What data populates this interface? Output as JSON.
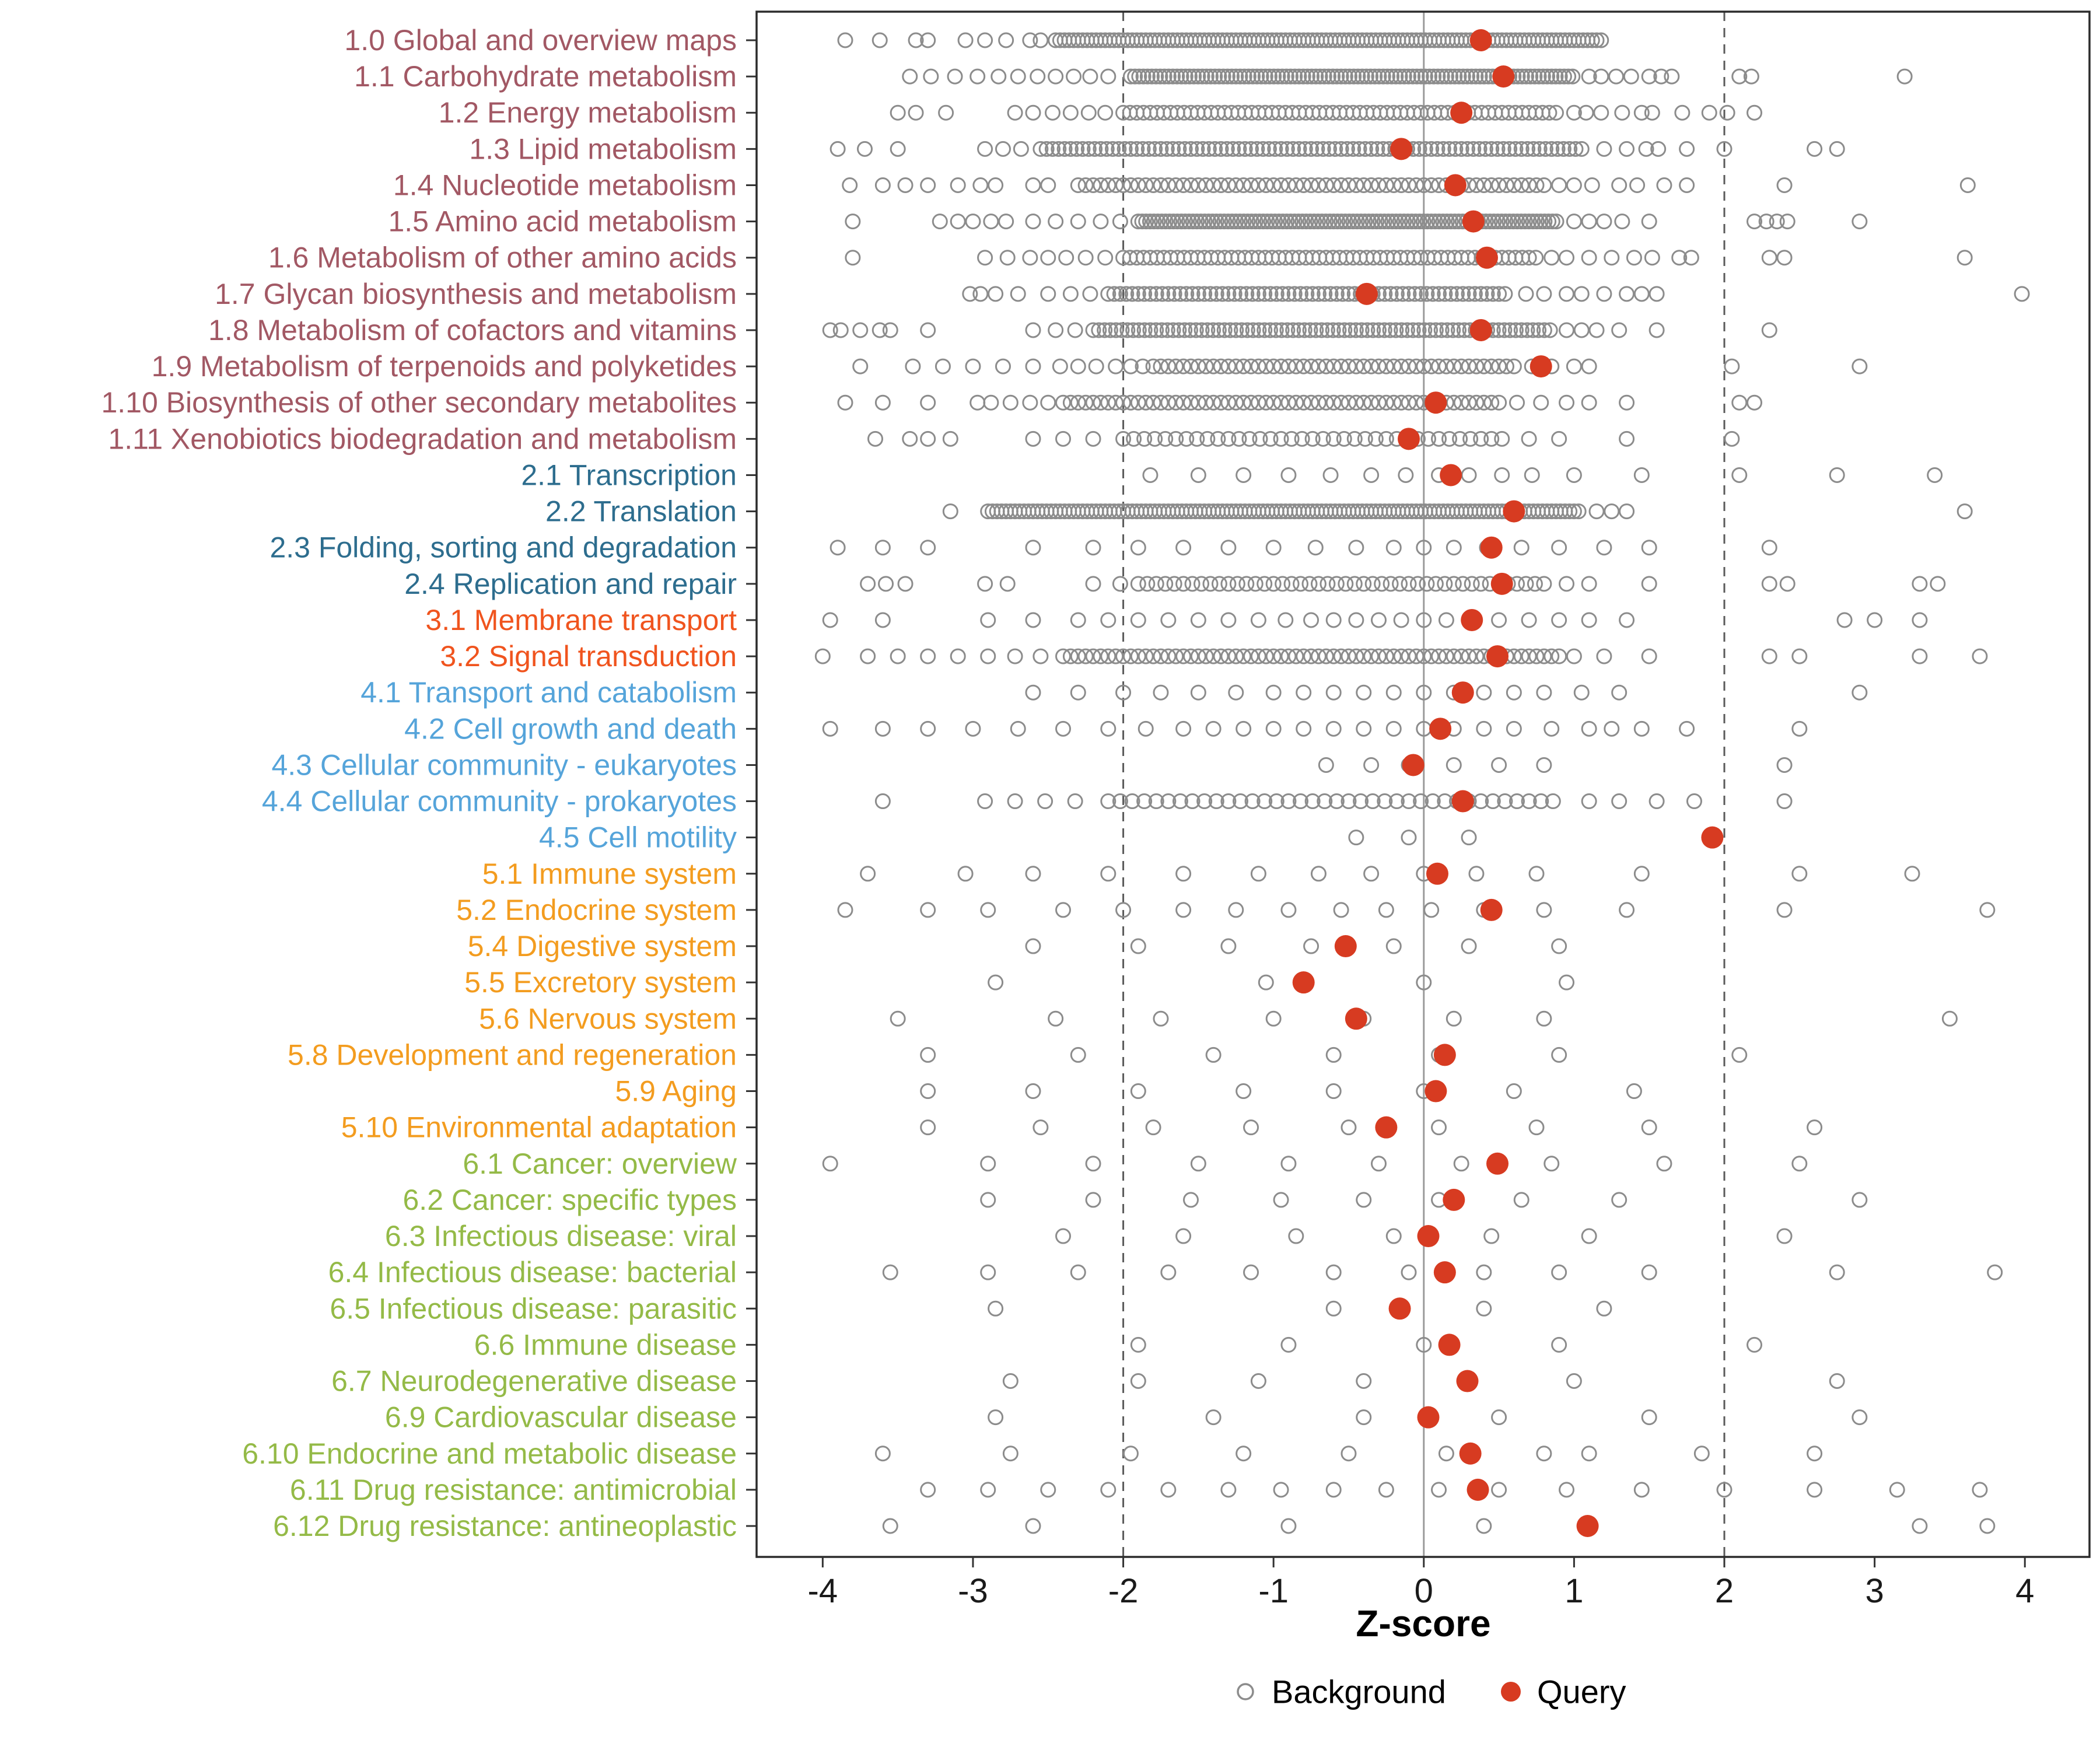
{
  "chart_data": {
    "type": "scatter",
    "title": "",
    "xlabel": "Z-score",
    "x_ticks": [
      -4,
      -3,
      -2,
      -1,
      0,
      1,
      2,
      3,
      4
    ],
    "xlim": [
      -4.44,
      4.43
    ],
    "reference_lines": {
      "solid": [
        0
      ],
      "dashed": [
        -2,
        2
      ]
    },
    "legend": {
      "background": "Background",
      "query": "Query"
    },
    "colors": {
      "g1": "#a25864",
      "g2": "#2d6d8e",
      "g3": "#f0541e",
      "g4": "#55a4da",
      "g5": "#f39c1f",
      "g6": "#94ba47",
      "query": "#d73b21",
      "background_stroke": "#8c8c8c",
      "axis_text": "#1a1a1a",
      "panel_border": "#2b2b2b",
      "zero_line": "#9b9b9b",
      "dashed_line": "#5a5a5a"
    },
    "rows": [
      {
        "label": "1.0 Global and overview maps",
        "group": "g1",
        "q": 0.38,
        "runs": [
          [
            -2.45,
            1.18,
            0.03
          ]
        ],
        "pts": [
          -3.85,
          -3.62,
          -3.38,
          -3.3,
          -3.05,
          -2.92,
          -2.78,
          -2.62,
          -2.55
        ]
      },
      {
        "label": "1.1 Carbohydrate metabolism",
        "group": "g1",
        "q": 0.53,
        "runs": [
          [
            -1.95,
            1.0,
            0.028
          ]
        ],
        "pts": [
          -3.42,
          -3.28,
          -3.12,
          -2.97,
          -2.83,
          -2.7,
          -2.57,
          -2.45,
          -2.33,
          -2.22,
          -2.1,
          1.1,
          1.18,
          1.28,
          1.38,
          1.5,
          1.58,
          1.65,
          2.1,
          2.18,
          3.2
        ]
      },
      {
        "label": "1.2 Energy metabolism",
        "group": "g1",
        "q": 0.25,
        "runs": [
          [
            -2.0,
            0.88,
            0.045
          ]
        ],
        "pts": [
          -3.5,
          -3.38,
          -3.18,
          -2.72,
          -2.6,
          -2.47,
          -2.35,
          -2.23,
          -2.12,
          1.0,
          1.08,
          1.18,
          1.32,
          1.45,
          1.52,
          1.72,
          1.9,
          2.02,
          2.2
        ]
      },
      {
        "label": "1.3 Lipid metabolism",
        "group": "g1",
        "q": -0.15,
        "runs": [
          [
            -2.55,
            1.08,
            0.04
          ]
        ],
        "pts": [
          -3.9,
          -3.72,
          -3.5,
          -2.92,
          -2.8,
          -2.68,
          1.2,
          1.35,
          1.48,
          1.56,
          1.75,
          2.0,
          2.6,
          2.75
        ]
      },
      {
        "label": "1.4 Nucleotide metabolism",
        "group": "g1",
        "q": 0.21,
        "runs": [
          [
            -2.3,
            0.8,
            0.05
          ]
        ],
        "pts": [
          -3.82,
          -3.6,
          -3.45,
          -3.3,
          -3.1,
          -2.95,
          -2.85,
          -2.6,
          -2.5,
          0.9,
          1.0,
          1.12,
          1.3,
          1.42,
          1.6,
          1.75,
          2.4,
          3.62
        ]
      },
      {
        "label": "1.5 Amino acid metabolism",
        "group": "g1",
        "q": 0.33,
        "runs": [
          [
            -1.9,
            0.9,
            0.026
          ]
        ],
        "pts": [
          -3.8,
          -3.22,
          -3.1,
          -3.0,
          -2.88,
          -2.78,
          -2.6,
          -2.45,
          -2.3,
          -2.15,
          -2.02,
          1.0,
          1.1,
          1.2,
          1.32,
          1.5,
          2.2,
          2.28,
          2.35,
          2.42,
          2.9
        ]
      },
      {
        "label": "1.6 Metabolism of other amino acids",
        "group": "g1",
        "q": 0.42,
        "runs": [
          [
            -2.0,
            0.75,
            0.045
          ]
        ],
        "pts": [
          -3.8,
          -2.92,
          -2.77,
          -2.62,
          -2.5,
          -2.38,
          -2.25,
          -2.12,
          0.85,
          0.95,
          1.1,
          1.25,
          1.4,
          1.52,
          1.7,
          1.78,
          2.3,
          2.4,
          3.6
        ]
      },
      {
        "label": "1.7 Glycan biosynthesis and metabolism",
        "group": "g1",
        "q": -0.38,
        "runs": [
          [
            -2.1,
            0.55,
            0.04
          ]
        ],
        "pts": [
          -3.02,
          -2.95,
          -2.85,
          -2.7,
          -2.5,
          -2.35,
          -2.22,
          0.68,
          0.8,
          0.95,
          1.05,
          1.2,
          1.35,
          1.45,
          1.55,
          3.98
        ]
      },
      {
        "label": "1.8 Metabolism of cofactors and vitamins",
        "group": "g1",
        "q": 0.38,
        "runs": [
          [
            -2.2,
            0.85,
            0.038
          ]
        ],
        "pts": [
          -3.95,
          -3.88,
          -3.75,
          -3.62,
          -3.55,
          -3.3,
          -2.6,
          -2.45,
          -2.32,
          0.95,
          1.05,
          1.15,
          1.3,
          1.55,
          2.3
        ]
      },
      {
        "label": "1.9 Metabolism of terpenoids and polyketides",
        "group": "g1",
        "q": 0.78,
        "runs": [
          [
            -1.8,
            0.62,
            0.05
          ]
        ],
        "pts": [
          -3.75,
          -3.4,
          -3.2,
          -3.0,
          -2.8,
          -2.6,
          -2.42,
          -2.3,
          -2.18,
          -2.05,
          -1.95,
          -1.87,
          0.72,
          0.85,
          1.0,
          1.1,
          2.05,
          2.9
        ]
      },
      {
        "label": "1.10 Biosynthesis of other secondary metabolites",
        "group": "g1",
        "q": 0.08,
        "runs": [
          [
            -2.4,
            0.5,
            0.05
          ]
        ],
        "pts": [
          -3.85,
          -3.6,
          -3.3,
          -2.97,
          -2.88,
          -2.75,
          -2.62,
          -2.5,
          0.62,
          0.78,
          0.95,
          1.1,
          1.35,
          2.1,
          2.2
        ]
      },
      {
        "label": "1.11 Xenobiotics biodegradation and metabolism",
        "group": "g1",
        "q": -0.1,
        "runs": [
          [
            -2.0,
            0.55,
            0.07
          ]
        ],
        "pts": [
          -3.65,
          -3.42,
          -3.3,
          -3.15,
          -2.6,
          -2.4,
          -2.2,
          0.7,
          0.9,
          1.35,
          2.05
        ]
      },
      {
        "label": "2.1 Transcription",
        "group": "g2",
        "q": 0.18,
        "runs": [],
        "pts": [
          -1.82,
          -1.5,
          -1.2,
          -0.9,
          -0.62,
          -0.35,
          -0.12,
          0.1,
          0.3,
          0.52,
          0.72,
          1.0,
          1.45,
          2.1,
          2.75,
          3.4
        ]
      },
      {
        "label": "2.2 Translation",
        "group": "g2",
        "q": 0.6,
        "runs": [
          [
            -2.9,
            1.05,
            0.03
          ]
        ],
        "pts": [
          -3.15,
          1.15,
          1.25,
          1.35,
          3.6
        ]
      },
      {
        "label": "2.3 Folding, sorting and degradation",
        "group": "g2",
        "q": 0.45,
        "runs": [],
        "pts": [
          -3.9,
          -3.6,
          -3.3,
          -2.6,
          -2.2,
          -1.9,
          -1.6,
          -1.3,
          -1.0,
          -0.72,
          -0.45,
          -0.2,
          0.0,
          0.2,
          0.42,
          0.65,
          0.9,
          1.2,
          1.5,
          2.3
        ]
      },
      {
        "label": "2.4 Replication and repair",
        "group": "g2",
        "q": 0.52,
        "runs": [
          [
            -1.9,
            0.8,
            0.06
          ]
        ],
        "pts": [
          -3.7,
          -3.58,
          -3.45,
          -2.92,
          -2.77,
          -2.2,
          -2.02,
          0.95,
          1.1,
          1.5,
          2.3,
          2.42,
          3.3,
          3.42
        ]
      },
      {
        "label": "3.1 Membrane transport",
        "group": "g3",
        "q": 0.32,
        "runs": [],
        "pts": [
          -3.95,
          -3.6,
          -2.9,
          -2.6,
          -2.3,
          -2.1,
          -1.9,
          -1.7,
          -1.5,
          -1.3,
          -1.1,
          -0.92,
          -0.75,
          -0.6,
          -0.45,
          -0.3,
          -0.15,
          0.0,
          0.15,
          0.3,
          0.5,
          0.7,
          0.9,
          1.1,
          1.35,
          2.8,
          3.0,
          3.3
        ]
      },
      {
        "label": "3.2 Signal transduction",
        "group": "g3",
        "q": 0.49,
        "runs": [
          [
            -2.4,
            0.9,
            0.05
          ]
        ],
        "pts": [
          -4.0,
          -3.7,
          -3.5,
          -3.3,
          -3.1,
          -2.9,
          -2.72,
          -2.55,
          1.0,
          1.2,
          1.5,
          2.3,
          2.5,
          3.3,
          3.7
        ]
      },
      {
        "label": "4.1 Transport and catabolism",
        "group": "g4",
        "q": 0.26,
        "runs": [],
        "pts": [
          -2.6,
          -2.3,
          -2.0,
          -1.75,
          -1.5,
          -1.25,
          -1.0,
          -0.8,
          -0.6,
          -0.4,
          -0.2,
          0.0,
          0.2,
          0.4,
          0.6,
          0.8,
          1.05,
          1.3,
          2.9
        ]
      },
      {
        "label": "4.2 Cell growth and death",
        "group": "g4",
        "q": 0.11,
        "runs": [],
        "pts": [
          -3.95,
          -3.6,
          -3.3,
          -3.0,
          -2.7,
          -2.4,
          -2.1,
          -1.85,
          -1.6,
          -1.4,
          -1.2,
          -1.0,
          -0.8,
          -0.6,
          -0.4,
          -0.2,
          0.0,
          0.2,
          0.4,
          0.6,
          0.85,
          1.1,
          1.25,
          1.45,
          1.75,
          2.5
        ]
      },
      {
        "label": "4.3 Cellular community - eukaryotes",
        "group": "g4",
        "q": -0.07,
        "runs": [],
        "pts": [
          -0.65,
          -0.35,
          -0.1,
          0.2,
          0.5,
          0.8,
          2.4
        ]
      },
      {
        "label": "4.4 Cellular community - prokaryotes",
        "group": "g4",
        "q": 0.26,
        "runs": [
          [
            -2.1,
            0.9,
            0.08
          ]
        ],
        "pts": [
          -3.6,
          -2.92,
          -2.72,
          -2.52,
          -2.32,
          1.1,
          1.3,
          1.55,
          1.8,
          2.4
        ]
      },
      {
        "label": "4.5 Cell motility",
        "group": "g4",
        "q": 1.92,
        "runs": [],
        "pts": [
          -0.45,
          -0.1,
          0.3
        ]
      },
      {
        "label": "5.1 Immune system",
        "group": "g5",
        "q": 0.09,
        "runs": [],
        "pts": [
          -3.7,
          -3.05,
          -2.6,
          -2.1,
          -1.6,
          -1.1,
          -0.7,
          -0.35,
          0.0,
          0.35,
          0.75,
          1.45,
          2.5,
          3.25
        ]
      },
      {
        "label": "5.2 Endocrine system",
        "group": "g5",
        "q": 0.45,
        "runs": [],
        "pts": [
          -3.85,
          -3.3,
          -2.9,
          -2.4,
          -2.0,
          -1.6,
          -1.25,
          -0.9,
          -0.55,
          -0.25,
          0.05,
          0.4,
          0.8,
          1.35,
          2.4,
          3.75
        ]
      },
      {
        "label": "5.4 Digestive system",
        "group": "g5",
        "q": -0.52,
        "runs": [],
        "pts": [
          -2.6,
          -1.9,
          -1.3,
          -0.75,
          -0.2,
          0.3,
          0.9
        ]
      },
      {
        "label": "5.5 Excretory system",
        "group": "g5",
        "q": -0.8,
        "runs": [],
        "pts": [
          -2.85,
          -1.05,
          0.0,
          0.95
        ]
      },
      {
        "label": "5.6 Nervous system",
        "group": "g5",
        "q": -0.45,
        "runs": [],
        "pts": [
          -3.5,
          -2.45,
          -1.75,
          -1.0,
          -0.4,
          0.2,
          0.8,
          3.5
        ]
      },
      {
        "label": "5.8 Development and regeneration",
        "group": "g5",
        "q": 0.14,
        "runs": [],
        "pts": [
          -3.3,
          -2.3,
          -1.4,
          -0.6,
          0.1,
          0.9,
          2.1
        ]
      },
      {
        "label": "5.9 Aging",
        "group": "g5",
        "q": 0.08,
        "runs": [],
        "pts": [
          -3.3,
          -2.6,
          -1.9,
          -1.2,
          -0.6,
          0.0,
          0.6,
          1.4
        ]
      },
      {
        "label": "5.10 Environmental adaptation",
        "group": "g5",
        "q": -0.25,
        "runs": [],
        "pts": [
          -3.3,
          -2.55,
          -1.8,
          -1.15,
          -0.5,
          0.1,
          0.75,
          1.5,
          2.6
        ]
      },
      {
        "label": "6.1 Cancer: overview",
        "group": "g6",
        "q": 0.49,
        "runs": [],
        "pts": [
          -3.95,
          -2.9,
          -2.2,
          -1.5,
          -0.9,
          -0.3,
          0.25,
          0.85,
          1.6,
          2.5
        ]
      },
      {
        "label": "6.2 Cancer: specific types",
        "group": "g6",
        "q": 0.2,
        "runs": [],
        "pts": [
          -2.9,
          -2.2,
          -1.55,
          -0.95,
          -0.4,
          0.1,
          0.65,
          1.3,
          2.9
        ]
      },
      {
        "label": "6.3 Infectious disease: viral",
        "group": "g6",
        "q": 0.03,
        "runs": [],
        "pts": [
          -2.4,
          -1.6,
          -0.85,
          -0.2,
          0.45,
          1.1,
          2.4
        ]
      },
      {
        "label": "6.4 Infectious disease: bacterial",
        "group": "g6",
        "q": 0.14,
        "runs": [],
        "pts": [
          -3.55,
          -2.9,
          -2.3,
          -1.7,
          -1.15,
          -0.6,
          -0.1,
          0.4,
          0.9,
          1.5,
          2.75,
          3.8
        ]
      },
      {
        "label": "6.5 Infectious disease: parasitic",
        "group": "g6",
        "q": -0.16,
        "runs": [],
        "pts": [
          -2.85,
          -0.6,
          0.4,
          1.2
        ]
      },
      {
        "label": "6.6 Immune disease",
        "group": "g6",
        "q": 0.17,
        "runs": [],
        "pts": [
          -1.9,
          -0.9,
          0.0,
          0.9,
          2.2
        ]
      },
      {
        "label": "6.7 Neurodegenerative disease",
        "group": "g6",
        "q": 0.29,
        "runs": [],
        "pts": [
          -2.75,
          -1.9,
          -1.1,
          -0.4,
          0.3,
          1.0,
          2.75
        ]
      },
      {
        "label": "6.9 Cardiovascular disease",
        "group": "g6",
        "q": 0.03,
        "runs": [],
        "pts": [
          -2.85,
          -1.4,
          -0.4,
          0.5,
          1.5,
          2.9
        ]
      },
      {
        "label": "6.10 Endocrine and metabolic disease",
        "group": "g6",
        "q": 0.31,
        "runs": [],
        "pts": [
          -3.6,
          -2.75,
          -1.95,
          -1.2,
          -0.5,
          0.15,
          0.8,
          1.1,
          1.85,
          2.6
        ]
      },
      {
        "label": "6.11 Drug resistance: antimicrobial",
        "group": "g6",
        "q": 0.36,
        "runs": [],
        "pts": [
          -3.3,
          -2.9,
          -2.5,
          -2.1,
          -1.7,
          -1.3,
          -0.95,
          -0.6,
          -0.25,
          0.1,
          0.5,
          0.95,
          1.45,
          2.0,
          2.6,
          3.15,
          3.7
        ]
      },
      {
        "label": "6.12 Drug resistance: antineoplastic",
        "group": "g6",
        "q": 1.09,
        "runs": [],
        "pts": [
          -3.55,
          -2.6,
          -0.9,
          0.4,
          3.3,
          3.75
        ]
      }
    ]
  }
}
